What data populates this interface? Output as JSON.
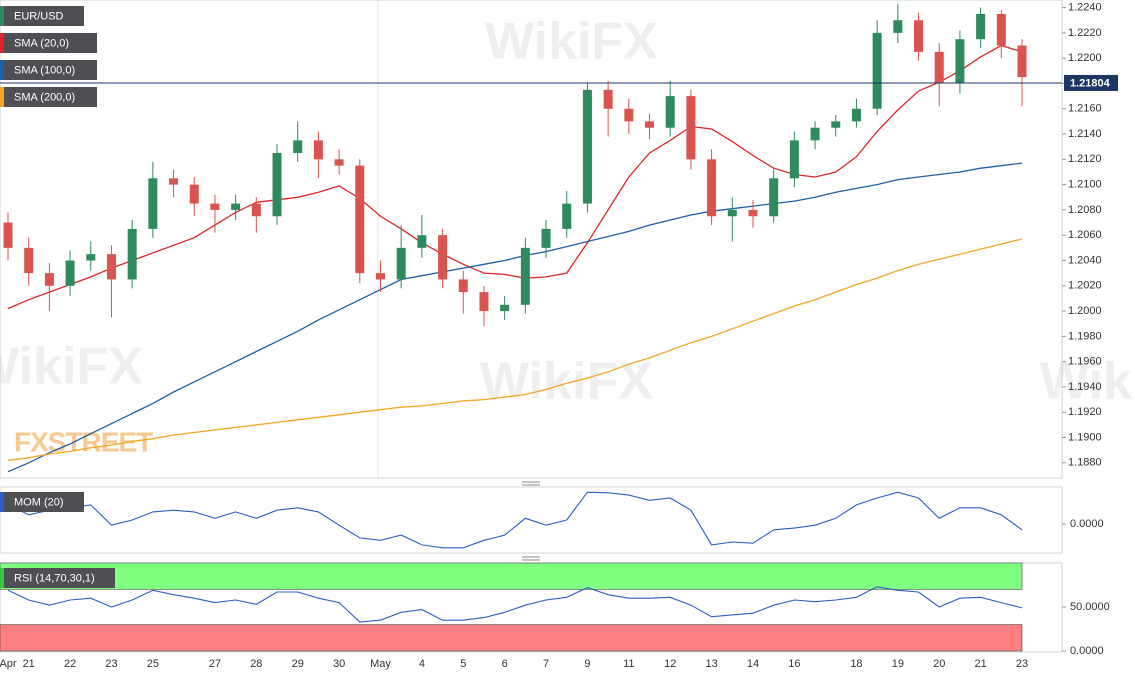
{
  "chart_data": [
    {
      "type": "candlestick",
      "name": "EUR/USD",
      "watermark": "WikiFX",
      "brand": "FXSTREET",
      "up_color": "#2f8a5e",
      "down_color": "#d9534f",
      "categories": [
        "Apr",
        "21",
        null,
        "22",
        null,
        "23",
        null,
        "25",
        null,
        null,
        "27",
        null,
        "28",
        null,
        "29",
        null,
        "30",
        null,
        "May",
        null,
        "4",
        null,
        "5",
        null,
        "6",
        null,
        "7",
        null,
        "9",
        null,
        "11",
        null,
        "12",
        null,
        "13",
        null,
        "14",
        null,
        "16",
        null,
        null,
        "18",
        null,
        "19",
        null,
        "20",
        null,
        "21",
        null,
        "23"
      ],
      "open": [
        1.207,
        1.205,
        1.203,
        1.202,
        1.204,
        1.2045,
        1.2025,
        1.2065,
        1.2105,
        1.21,
        1.2085,
        1.208,
        1.2085,
        1.2075,
        1.2125,
        1.2135,
        1.212,
        1.2115,
        1.203,
        1.2025,
        1.205,
        1.206,
        1.2025,
        1.2015,
        1.2,
        1.2005,
        1.205,
        1.2065,
        1.2085,
        1.2175,
        1.216,
        1.215,
        1.2145,
        1.217,
        1.212,
        1.2075,
        1.208,
        1.2075,
        1.2105,
        1.2135,
        1.2145,
        1.215,
        1.216,
        1.222,
        1.223,
        1.2205,
        1.218,
        1.2215,
        1.2235,
        1.221
      ],
      "high": [
        1.2078,
        1.2058,
        1.2038,
        1.2048,
        1.2055,
        1.2052,
        1.2072,
        1.2118,
        1.2112,
        1.2106,
        1.2092,
        1.2092,
        1.209,
        1.2132,
        1.215,
        1.2142,
        1.2128,
        1.212,
        1.204,
        1.2068,
        1.2076,
        1.2065,
        1.2032,
        1.202,
        1.2012,
        1.2058,
        1.2072,
        1.2095,
        1.218,
        1.2182,
        1.2168,
        1.2156,
        1.2182,
        1.2175,
        1.2128,
        1.209,
        1.2088,
        1.2112,
        1.2142,
        1.215,
        1.2155,
        1.2168,
        1.223,
        1.2243,
        1.2236,
        1.2212,
        1.2222,
        1.224,
        1.2238,
        1.2215
      ],
      "low": [
        1.204,
        1.202,
        1.2,
        1.2012,
        1.2032,
        1.1995,
        1.2018,
        1.2058,
        1.209,
        1.2075,
        1.2062,
        1.2072,
        1.2062,
        1.2068,
        1.2118,
        1.2105,
        1.2108,
        1.2022,
        1.2015,
        1.2018,
        1.2042,
        1.2018,
        1.1998,
        1.1988,
        1.1993,
        1.1998,
        1.2042,
        1.2058,
        1.2078,
        1.2138,
        1.214,
        1.2136,
        1.2138,
        1.2112,
        1.2068,
        1.2055,
        1.2066,
        1.207,
        1.2098,
        1.2128,
        1.2138,
        1.2145,
        1.2155,
        1.2212,
        1.2198,
        1.2162,
        1.2172,
        1.2208,
        1.22,
        1.2162
      ],
      "close": [
        1.205,
        1.203,
        1.202,
        1.204,
        1.2045,
        1.2025,
        1.2065,
        1.2105,
        1.21,
        1.2085,
        1.208,
        1.2085,
        1.2075,
        1.2125,
        1.2135,
        1.212,
        1.2115,
        1.203,
        1.2025,
        1.205,
        1.206,
        1.2025,
        1.2015,
        1.2,
        1.2005,
        1.205,
        1.2065,
        1.2085,
        1.2175,
        1.216,
        1.215,
        1.2145,
        1.217,
        1.212,
        1.2075,
        1.208,
        1.2075,
        1.2105,
        1.2135,
        1.2145,
        1.215,
        1.216,
        1.222,
        1.223,
        1.2205,
        1.218,
        1.2215,
        1.2235,
        1.221,
        1.2185
      ],
      "series": [
        {
          "name": "SMA (20,0)",
          "color": "#e0262b",
          "values": [
            1.2002,
            1.2009,
            1.2015,
            1.2021,
            1.2027,
            1.2034,
            1.204,
            1.2046,
            1.2052,
            1.2058,
            1.2068,
            1.2078,
            1.2086,
            1.2088,
            1.209,
            1.2094,
            1.2099,
            1.2089,
            1.2075,
            1.2065,
            1.2054,
            1.2045,
            1.2037,
            1.203,
            1.2029,
            1.2026,
            1.2027,
            1.203,
            1.2054,
            1.208,
            1.2106,
            1.2125,
            1.2135,
            1.2146,
            1.2144,
            1.2134,
            1.2123,
            1.2113,
            1.2108,
            1.2106,
            1.211,
            1.2122,
            1.2142,
            1.2159,
            1.2174,
            1.2181,
            1.219,
            1.2201,
            1.221,
            1.2205
          ]
        },
        {
          "name": "SMA (100,0)",
          "color": "#1f5ea8",
          "values": [
            1.1873,
            1.188,
            1.1888,
            1.1895,
            1.1903,
            1.1911,
            1.1919,
            1.1927,
            1.1936,
            1.1944,
            1.1952,
            1.196,
            1.1968,
            1.1976,
            1.1984,
            1.1993,
            1.2001,
            1.2009,
            1.2017,
            1.2025,
            1.2028,
            1.2031,
            1.2034,
            1.2037,
            1.204,
            1.2044,
            1.2047,
            1.2051,
            1.2055,
            1.2059,
            1.2063,
            1.2068,
            1.2072,
            1.2076,
            1.2079,
            1.2081,
            1.2083,
            1.2085,
            1.2087,
            1.209,
            1.2094,
            1.2097,
            1.21,
            1.2104,
            1.2106,
            1.2108,
            1.211,
            1.2113,
            1.2115,
            1.2117
          ]
        },
        {
          "name": "SMA (200,0)",
          "color": "#f5a623",
          "values": [
            1.1882,
            1.1884,
            1.1887,
            1.1889,
            1.1892,
            1.1894,
            1.1897,
            1.1899,
            1.1902,
            1.1904,
            1.1906,
            1.1908,
            1.191,
            1.1912,
            1.1914,
            1.1916,
            1.1918,
            1.192,
            1.1922,
            1.1924,
            1.1925,
            1.1927,
            1.1929,
            1.193,
            1.1932,
            1.1934,
            1.1938,
            1.1943,
            1.1947,
            1.1952,
            1.1958,
            1.1963,
            1.1969,
            1.1975,
            1.198,
            1.1986,
            1.1992,
            1.1998,
            1.2004,
            1.2009,
            1.2015,
            1.2021,
            1.2026,
            1.2032,
            1.2037,
            1.2041,
            1.2045,
            1.2049,
            1.2053,
            1.2057
          ]
        }
      ],
      "last_price": 1.21804,
      "last_price_color": "#1c3664",
      "ylim": [
        1.1868,
        1.2246
      ],
      "yticks": [
        {
          "value": 1.224,
          "label": "1.2240"
        },
        {
          "value": 1.222,
          "label": "1.2220"
        },
        {
          "value": 1.22,
          "label": "1.2200"
        },
        {
          "value": 1.218,
          "label": "1.2180"
        },
        {
          "value": 1.216,
          "label": "1.2160"
        },
        {
          "value": 1.214,
          "label": "1.2140"
        },
        {
          "value": 1.212,
          "label": "1.2120"
        },
        {
          "value": 1.21,
          "label": "1.2100"
        },
        {
          "value": 1.208,
          "label": "1.2080"
        },
        {
          "value": 1.206,
          "label": "1.2060"
        },
        {
          "value": 1.204,
          "label": "1.2040"
        },
        {
          "value": 1.202,
          "label": "1.2020"
        },
        {
          "value": 1.2,
          "label": "1.2000"
        },
        {
          "value": 1.198,
          "label": "1.1980"
        },
        {
          "value": 1.196,
          "label": "1.1960"
        },
        {
          "value": 1.194,
          "label": "1.1940"
        },
        {
          "value": 1.192,
          "label": "1.1920"
        },
        {
          "value": 1.19,
          "label": "1.1900"
        },
        {
          "value": 1.188,
          "label": "1.1880"
        }
      ]
    },
    {
      "type": "line",
      "title": "MOM (20)",
      "color": "#2b5fc4",
      "values": [
        0.0033,
        0.0016,
        0.0024,
        0.0028,
        0.0033,
        -0.0002,
        0.0007,
        0.0021,
        0.0024,
        0.0021,
        0.001,
        0.0021,
        0.001,
        0.0024,
        0.0028,
        0.0021,
        -0.0002,
        -0.0024,
        -0.0028,
        -0.0019,
        -0.0036,
        -0.0041,
        -0.0041,
        -0.0028,
        -0.0019,
        0.001,
        -0.0002,
        0.0007,
        0.0055,
        0.0054,
        0.005,
        0.0041,
        0.0045,
        0.0024,
        -0.0036,
        -0.0031,
        -0.0033,
        -0.001,
        -0.0007,
        -0.0002,
        0.001,
        0.0033,
        0.0045,
        0.0055,
        0.0045,
        0.001,
        0.0028,
        0.0028,
        0.0016,
        -0.001
      ],
      "ylim": [
        -0.005,
        0.0064
      ],
      "yticks": [
        {
          "value": 0,
          "label": "0.0000"
        }
      ]
    },
    {
      "type": "line",
      "title": "RSI (14,70,30,1)",
      "color": "#2b5fc4",
      "legend_color": "#3cc43c",
      "values": [
        69,
        58,
        52,
        58,
        60,
        50,
        58,
        69,
        64,
        60,
        55,
        58,
        53,
        67,
        67,
        60,
        55,
        33,
        35,
        44,
        47,
        35,
        35,
        38,
        44,
        52,
        58,
        61,
        72,
        64,
        60,
        60,
        61,
        52,
        39,
        41,
        43,
        52,
        58,
        56,
        58,
        61,
        73,
        69,
        67,
        50,
        60,
        61,
        55,
        49
      ],
      "bands": [
        {
          "from": 70,
          "to": 100,
          "color": "#80ff80"
        },
        {
          "from": 0,
          "to": 30,
          "color": "#ff8080"
        }
      ],
      "ylim": [
        0,
        100
      ],
      "yticks": [
        {
          "value": 0,
          "label": "0.0000"
        },
        {
          "value": 50,
          "label": "50.0000"
        }
      ]
    }
  ]
}
